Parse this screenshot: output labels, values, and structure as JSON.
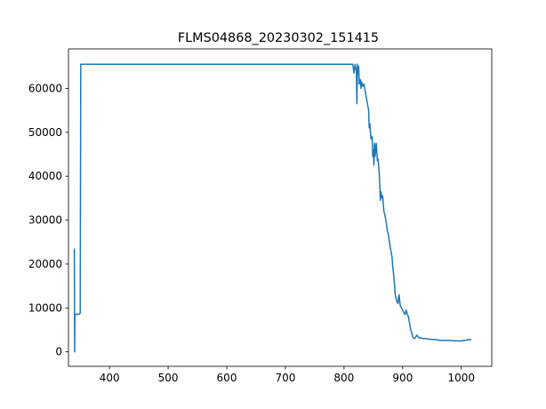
{
  "chart_data": {
    "type": "line",
    "title": "FLMS04868_20230302_151415",
    "xlabel": "",
    "ylabel": "",
    "xlim": [
      330,
      1052
    ],
    "ylim": [
      -3300,
      69000
    ],
    "xticks": [
      400,
      500,
      600,
      700,
      800,
      900,
      1000
    ],
    "yticks": [
      0,
      10000,
      20000,
      30000,
      40000,
      50000,
      60000
    ],
    "grid": false,
    "legend": "none",
    "series": [
      {
        "color": "#1f77b4",
        "points": [
          [
            340,
            23500
          ],
          [
            340.5,
            0
          ],
          [
            341,
            8500
          ],
          [
            343,
            8600
          ],
          [
            347,
            8500
          ],
          [
            350,
            8800
          ],
          [
            351,
            65500
          ],
          [
            815,
            65500
          ],
          [
            817,
            63500
          ],
          [
            819,
            65500
          ],
          [
            821,
            64000
          ],
          [
            822,
            56500
          ],
          [
            823,
            65500
          ],
          [
            824,
            63500
          ],
          [
            825,
            65000
          ],
          [
            826,
            61000
          ],
          [
            828,
            62000
          ],
          [
            829,
            60000
          ],
          [
            830,
            61500
          ],
          [
            832,
            60500
          ],
          [
            834,
            61000
          ],
          [
            836,
            59500
          ],
          [
            838,
            58000
          ],
          [
            840,
            56500
          ],
          [
            842,
            55000
          ],
          [
            843,
            51000
          ],
          [
            844,
            52000
          ],
          [
            846,
            48500
          ],
          [
            848,
            49000
          ],
          [
            849,
            44500
          ],
          [
            850,
            46000
          ],
          [
            851,
            42500
          ],
          [
            852,
            47500
          ],
          [
            853,
            44500
          ],
          [
            855,
            47500
          ],
          [
            857,
            43500
          ],
          [
            858,
            44000
          ],
          [
            860,
            41000
          ],
          [
            862,
            34500
          ],
          [
            863,
            36500
          ],
          [
            865,
            35000
          ],
          [
            866,
            35500
          ],
          [
            868,
            32000
          ],
          [
            870,
            31000
          ],
          [
            872,
            29500
          ],
          [
            874,
            27500
          ],
          [
            876,
            26500
          ],
          [
            878,
            24500
          ],
          [
            880,
            23000
          ],
          [
            882,
            21500
          ],
          [
            883,
            19500
          ],
          [
            884,
            18500
          ],
          [
            886,
            15500
          ],
          [
            887,
            13500
          ],
          [
            888,
            12500
          ],
          [
            890,
            11500
          ],
          [
            892,
            11000
          ],
          [
            893,
            12500
          ],
          [
            894,
            13000
          ],
          [
            895,
            11500
          ],
          [
            896,
            10500
          ],
          [
            898,
            10000
          ],
          [
            900,
            9500
          ],
          [
            902,
            9000
          ],
          [
            904,
            8500
          ],
          [
            906,
            9500
          ],
          [
            908,
            8500
          ],
          [
            910,
            8000
          ],
          [
            911,
            7000
          ],
          [
            912,
            6500
          ],
          [
            913,
            5500
          ],
          [
            915,
            4500
          ],
          [
            917,
            3500
          ],
          [
            918,
            3200
          ],
          [
            920,
            3000
          ],
          [
            922,
            3300
          ],
          [
            924,
            3800
          ],
          [
            926,
            3500
          ],
          [
            928,
            3200
          ],
          [
            930,
            3200
          ],
          [
            935,
            3000
          ],
          [
            940,
            3000
          ],
          [
            945,
            2900
          ],
          [
            950,
            2800
          ],
          [
            955,
            2800
          ],
          [
            960,
            2700
          ],
          [
            965,
            2600
          ],
          [
            970,
            2600
          ],
          [
            980,
            2600
          ],
          [
            990,
            2500
          ],
          [
            1000,
            2500
          ],
          [
            1005,
            2600
          ],
          [
            1010,
            2700
          ],
          [
            1014,
            2800
          ],
          [
            1017,
            2700
          ]
        ]
      }
    ]
  }
}
